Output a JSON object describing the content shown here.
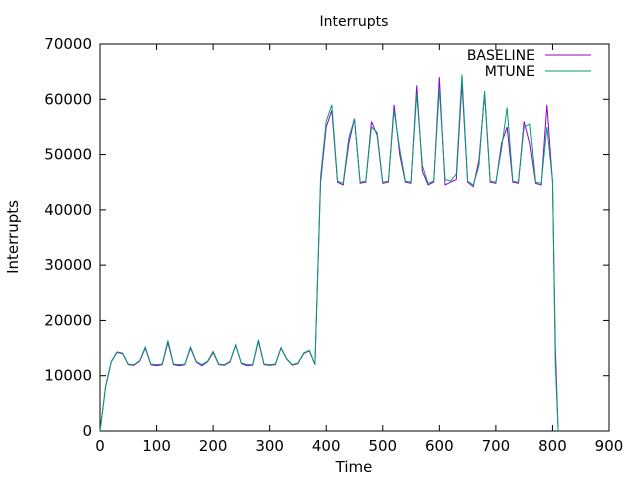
{
  "chart_data": {
    "type": "line",
    "title": "Interrupts",
    "xlabel": "Time",
    "ylabel": "Interrupts",
    "xlim": [
      0,
      900
    ],
    "ylim": [
      0,
      70000
    ],
    "xticks": [
      0,
      100,
      200,
      300,
      400,
      500,
      600,
      700,
      800,
      900
    ],
    "yticks": [
      0,
      10000,
      20000,
      30000,
      40000,
      50000,
      60000,
      70000
    ],
    "grid": false,
    "legend_position": "top-right",
    "colors": {
      "BASELINE": "#9400d3",
      "MTUNE": "#009e73"
    },
    "series": [
      {
        "name": "BASELINE",
        "x": [
          0,
          10,
          20,
          30,
          40,
          50,
          60,
          70,
          80,
          90,
          100,
          110,
          120,
          130,
          140,
          150,
          160,
          170,
          180,
          190,
          200,
          210,
          220,
          230,
          240,
          250,
          260,
          270,
          280,
          290,
          300,
          310,
          320,
          330,
          340,
          350,
          360,
          370,
          380,
          390,
          400,
          410,
          420,
          430,
          440,
          450,
          460,
          470,
          480,
          490,
          500,
          510,
          520,
          530,
          540,
          550,
          560,
          570,
          580,
          590,
          600,
          610,
          620,
          630,
          640,
          650,
          660,
          670,
          680,
          690,
          700,
          710,
          720,
          730,
          740,
          750,
          760,
          770,
          780,
          790,
          800,
          805,
          810
        ],
        "y": [
          0,
          8000,
          12500,
          14200,
          14000,
          12000,
          11900,
          12600,
          15000,
          12000,
          11800,
          12000,
          16000,
          12000,
          11800,
          12000,
          15000,
          12500,
          11800,
          12500,
          14200,
          12000,
          11900,
          12500,
          15500,
          12200,
          11800,
          11900,
          16200,
          12000,
          11900,
          12000,
          15000,
          13000,
          11900,
          12200,
          14000,
          14500,
          12000,
          45000,
          55000,
          58000,
          45000,
          44500,
          52000,
          56500,
          44800,
          45000,
          56000,
          53500,
          44800,
          45000,
          59000,
          50000,
          45000,
          44800,
          62500,
          47000,
          44500,
          45000,
          64000,
          44500,
          45000,
          45500,
          63000,
          45000,
          44200,
          49000,
          61000,
          45000,
          44800,
          52000,
          55000,
          45000,
          44800,
          56000,
          52000,
          44800,
          44500,
          59000,
          45000,
          15000,
          0
        ]
      },
      {
        "name": "MTUNE",
        "x": [
          0,
          10,
          20,
          30,
          40,
          50,
          60,
          70,
          80,
          90,
          100,
          110,
          120,
          130,
          140,
          150,
          160,
          170,
          180,
          190,
          200,
          210,
          220,
          230,
          240,
          250,
          260,
          270,
          280,
          290,
          300,
          310,
          320,
          330,
          340,
          350,
          360,
          370,
          380,
          390,
          400,
          410,
          420,
          430,
          440,
          450,
          460,
          470,
          480,
          490,
          500,
          510,
          520,
          530,
          540,
          550,
          560,
          570,
          580,
          590,
          600,
          610,
          620,
          630,
          640,
          650,
          660,
          670,
          680,
          690,
          700,
          710,
          720,
          730,
          740,
          750,
          760,
          770,
          780,
          790,
          800,
          805,
          810
        ],
        "y": [
          0,
          8200,
          12600,
          14300,
          14100,
          12100,
          12000,
          12700,
          15200,
          12100,
          12000,
          12100,
          16400,
          12100,
          12000,
          12100,
          15200,
          12600,
          12000,
          12600,
          14400,
          12100,
          12000,
          12600,
          15600,
          12300,
          12000,
          12000,
          16500,
          12100,
          12000,
          12100,
          15100,
          13100,
          12000,
          12300,
          14100,
          14600,
          12100,
          46000,
          56000,
          59000,
          45200,
          44800,
          53000,
          56500,
          45000,
          45200,
          55000,
          54000,
          45000,
          45200,
          58000,
          51000,
          45200,
          45000,
          61000,
          48000,
          44800,
          45200,
          62000,
          45500,
          45200,
          46500,
          64500,
          45200,
          44500,
          48000,
          61500,
          45200,
          45000,
          51000,
          58500,
          45200,
          45000,
          55000,
          55500,
          45000,
          44800,
          55000,
          45200,
          12000,
          0
        ]
      }
    ]
  }
}
